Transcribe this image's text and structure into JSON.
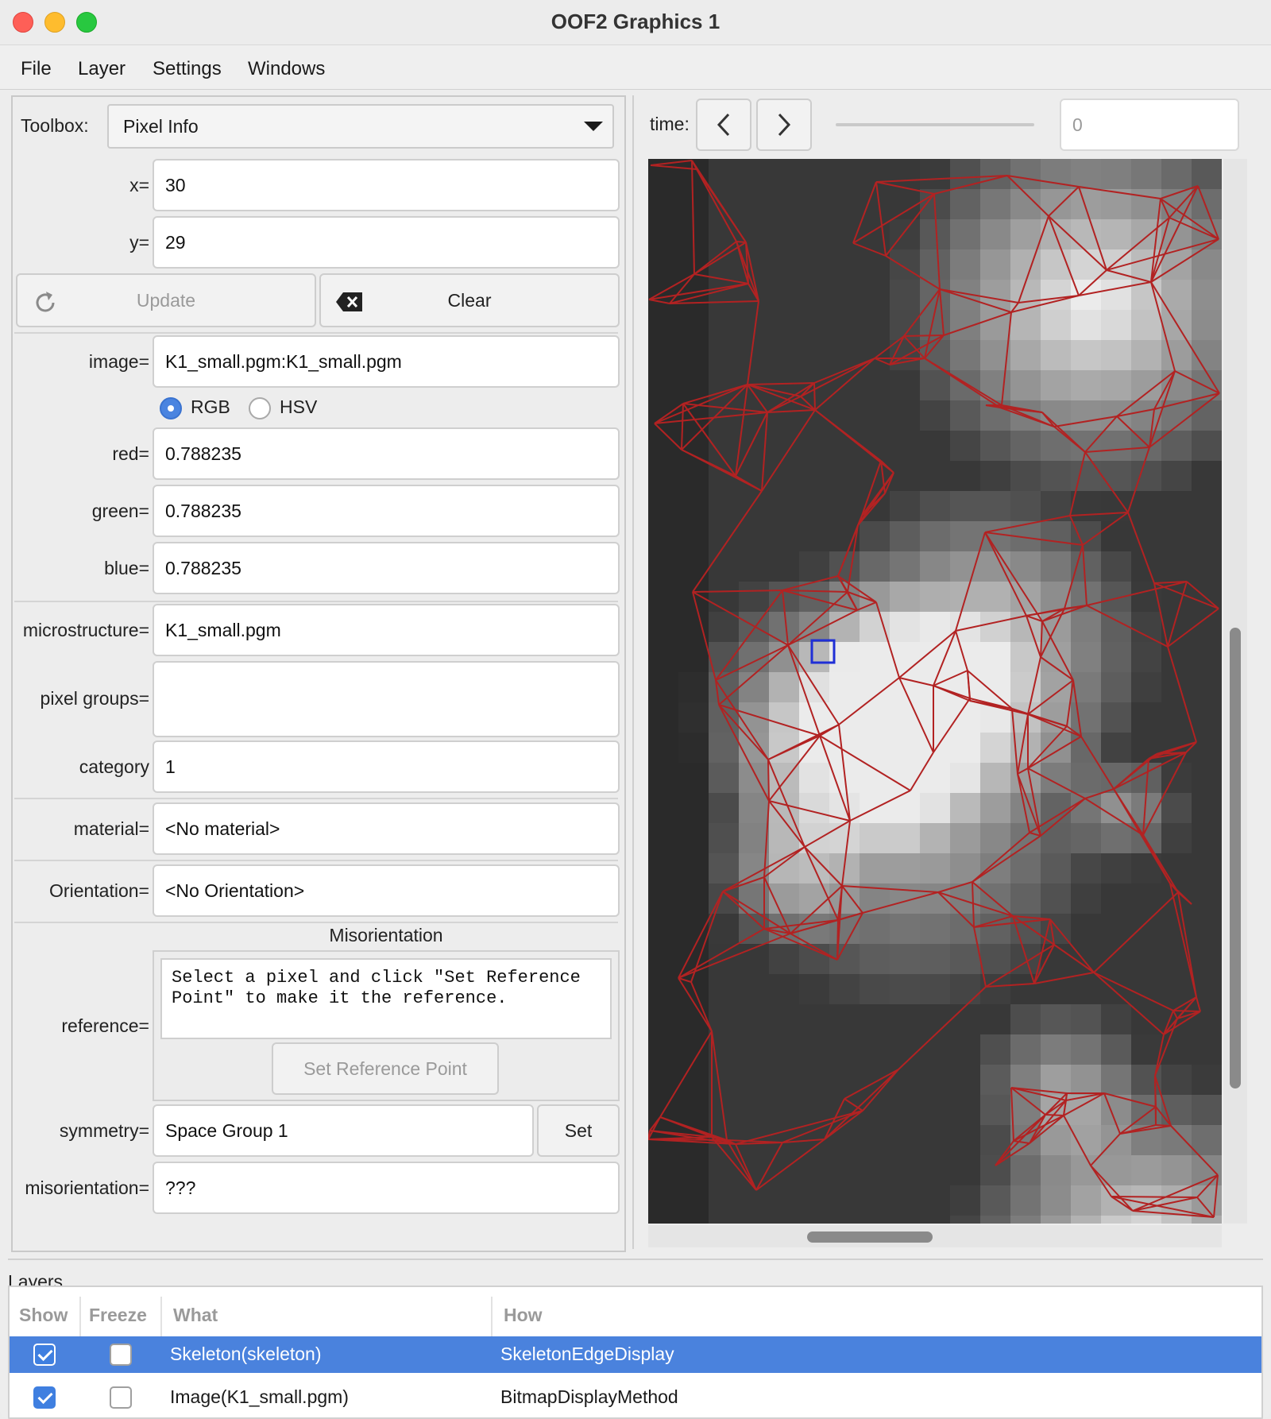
{
  "window": {
    "title": "OOF2 Graphics 1"
  },
  "menubar": [
    "File",
    "Layer",
    "Settings",
    "Windows"
  ],
  "toolbox": {
    "label": "Toolbox:",
    "selected": "Pixel Info",
    "x_label": "x=",
    "x_value": "30",
    "y_label": "y=",
    "y_value": "29",
    "update_label": "Update",
    "clear_label": "Clear",
    "image_label": "image=",
    "image_value": "K1_small.pgm:K1_small.pgm",
    "rgb_label": "RGB",
    "hsv_label": "HSV",
    "red_label": "red=",
    "red_value": "0.788235",
    "green_label": "green=",
    "green_value": "0.788235",
    "blue_label": "blue=",
    "blue_value": "0.788235",
    "microstructure_label": "microstructure=",
    "microstructure_value": "K1_small.pgm",
    "pixel_groups_label": "pixel groups=",
    "pixel_groups_value": "",
    "category_label": "category",
    "category_value": "1",
    "material_label": "material=",
    "material_value": "<No material>",
    "orientation_label": "Orientation=",
    "orientation_value": "<No Orientation>",
    "misorientation_header": "Misorientation",
    "reference_label": "reference=",
    "reference_text": "Select a pixel and click \"Set Reference Point\" to make it the reference.",
    "set_reference_label": "Set Reference Point",
    "symmetry_label": "symmetry=",
    "symmetry_value": "Space Group 1",
    "set_label": "Set",
    "misorientation_label": "misorientation=",
    "misorientation_value": "???"
  },
  "time": {
    "label": "time:",
    "value": "0",
    "slider_position": 0
  },
  "canvas": {
    "mesh_color": "#b22222",
    "marker_color": "#1f2fd6"
  },
  "layers": {
    "title": "Layers",
    "columns": [
      "Show",
      "Freeze",
      "What",
      "How"
    ],
    "rows": [
      {
        "show": true,
        "freeze": false,
        "what": "Skeleton(skeleton)",
        "how": "SkeletonEdgeDisplay",
        "selected": true
      },
      {
        "show": true,
        "freeze": false,
        "what": "Image(K1_small.pgm)",
        "how": "BitmapDisplayMethod",
        "selected": false
      }
    ]
  }
}
